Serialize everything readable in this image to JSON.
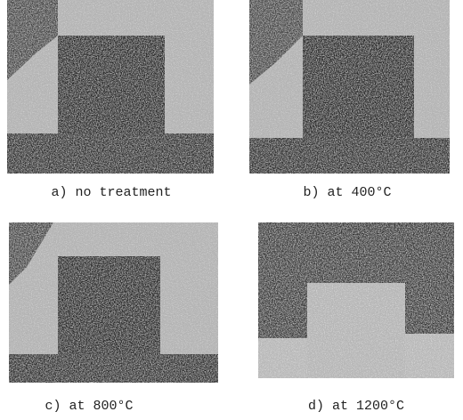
{
  "figure": {
    "panels": [
      {
        "caption": "a) no treatment"
      },
      {
        "caption": "b) at 400°C"
      },
      {
        "caption": "c) at 800°C"
      },
      {
        "caption": "d) at 1200°C"
      }
    ]
  }
}
